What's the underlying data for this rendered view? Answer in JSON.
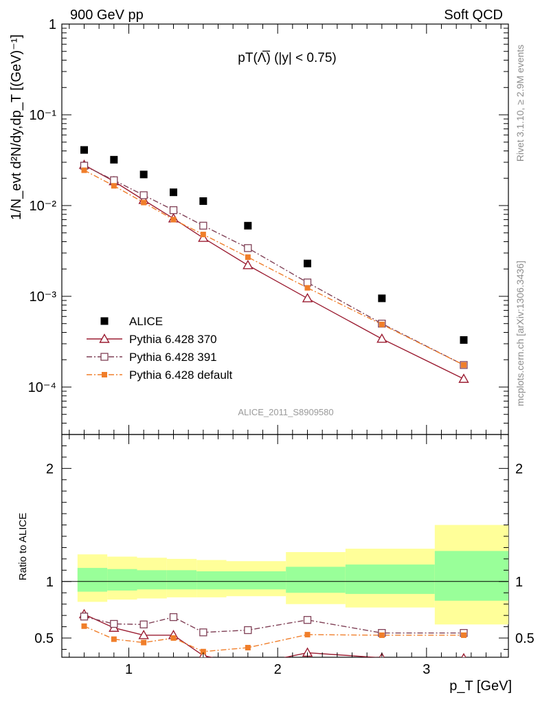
{
  "header": {
    "left": "900 GeV pp",
    "right": "Soft QCD"
  },
  "side_labels": {
    "rivet": "Rivet 3.1.10, ≥ 2.9M events",
    "site": "mcplots.cern.ch [arXiv:1306.3436]"
  },
  "chart_data": [
    {
      "type": "scatter",
      "panel": "main",
      "title": "pT(Λ̅) (|y| < 0.75)",
      "xlabel": "p_T [GeV]",
      "ylabel": "1/N_evt d²N/dy,dp_T [(GeV)⁻¹]",
      "yscale": "log",
      "xlim": [
        0.55,
        3.55
      ],
      "ylim": [
        3e-05,
        1
      ],
      "y_ticks": [
        "10⁻⁴",
        "10⁻³",
        "10⁻²",
        "10⁻¹",
        "1"
      ],
      "watermark": "ALICE_2011_S8909580",
      "legend_position": "bottom-left",
      "x": [
        0.7,
        0.9,
        1.1,
        1.3,
        1.5,
        1.8,
        2.2,
        2.7,
        3.25
      ],
      "series": [
        {
          "name": "ALICE",
          "color": "#000000",
          "marker": "filled-square",
          "line": "none",
          "values": [
            0.041,
            0.032,
            0.022,
            0.014,
            0.0112,
            0.006,
            0.0023,
            0.00095,
            0.00033
          ]
        },
        {
          "name": "Pythia 6.428 370",
          "color": "#9b1c31",
          "marker": "open-triangle",
          "line": "solid",
          "values": [
            0.028,
            0.0185,
            0.0115,
            0.0072,
            0.0044,
            0.0022,
            0.00095,
            0.00034,
            0.000123
          ]
        },
        {
          "name": "Pythia 6.428 391",
          "color": "#7f3f55",
          "marker": "open-square",
          "line": "dash-dot",
          "values": [
            0.0275,
            0.019,
            0.013,
            0.0089,
            0.006,
            0.0034,
            0.00142,
            0.0005,
            0.000175
          ]
        },
        {
          "name": "Pythia 6.428 default",
          "color": "#f07e2a",
          "marker": "filled-small-square",
          "line": "dash-dot",
          "values": [
            0.0245,
            0.0165,
            0.0108,
            0.007,
            0.0048,
            0.0027,
            0.00124,
            0.00049,
            0.000175
          ]
        }
      ]
    },
    {
      "type": "line",
      "panel": "ratio",
      "xlabel": "p_T [GeV]",
      "ylabel": "Ratio to ALICE",
      "xlim": [
        0.55,
        3.55
      ],
      "ylim": [
        0.33,
        2.3
      ],
      "x_ticks": [
        "1",
        "2",
        "3"
      ],
      "y_ticks": [
        "0.5",
        "1",
        "2"
      ],
      "bands": {
        "edges": [
          0.6,
          0.8,
          1.0,
          1.2,
          1.4,
          1.6,
          2.0,
          2.4,
          3.0,
          3.5
        ],
        "yellow_lo": [
          0.82,
          0.84,
          0.85,
          0.86,
          0.86,
          0.87,
          0.8,
          0.77,
          0.62
        ],
        "yellow_hi": [
          1.24,
          1.22,
          1.21,
          1.2,
          1.19,
          1.18,
          1.26,
          1.29,
          1.5
        ],
        "green_lo": [
          0.91,
          0.92,
          0.93,
          0.93,
          0.93,
          0.93,
          0.9,
          0.89,
          0.83
        ],
        "green_hi": [
          1.12,
          1.11,
          1.1,
          1.1,
          1.09,
          1.09,
          1.13,
          1.15,
          1.27
        ]
      },
      "x": [
        0.7,
        0.9,
        1.1,
        1.3,
        1.5,
        1.8,
        2.2,
        2.7,
        3.25
      ],
      "series": [
        {
          "name": "Pythia 6.428 370",
          "color": "#9b1c31",
          "marker": "open-triangle",
          "line": "solid",
          "values": [
            0.71,
            0.59,
            0.525,
            0.525,
            0.345,
            0.26,
            0.37,
            0.325,
            0.32
          ]
        },
        {
          "name": "Pythia 6.428 391",
          "color": "#7f3f55",
          "marker": "open-square",
          "line": "dash-dot",
          "values": [
            0.69,
            0.625,
            0.62,
            0.685,
            0.55,
            0.57,
            0.66,
            0.545,
            0.545
          ]
        },
        {
          "name": "Pythia 6.428 default",
          "color": "#f07e2a",
          "marker": "filled-small-square",
          "line": "dash-dot",
          "values": [
            0.605,
            0.49,
            0.46,
            0.5,
            0.38,
            0.415,
            0.53,
            0.525,
            0.525
          ]
        }
      ]
    }
  ]
}
